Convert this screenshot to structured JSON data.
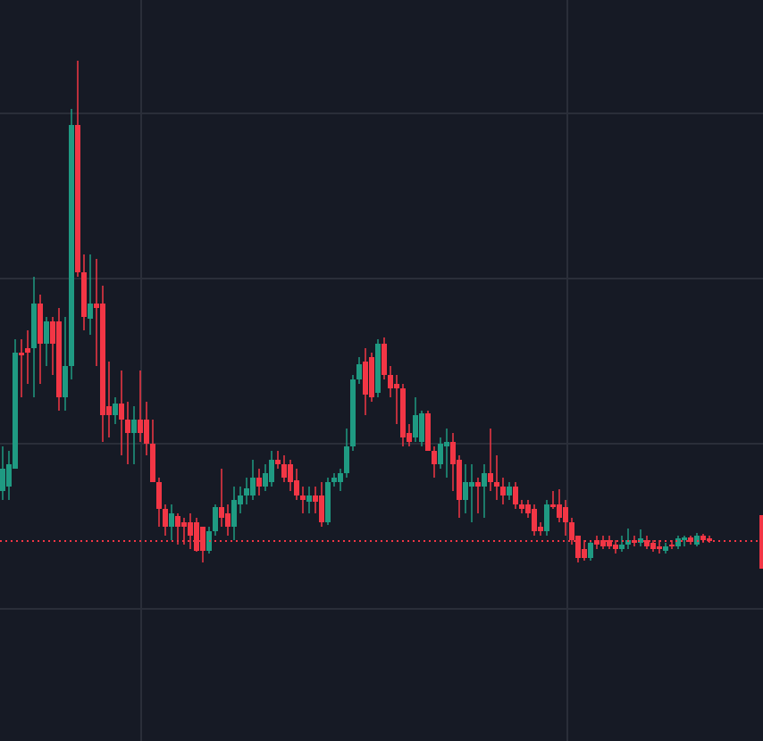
{
  "chart_data": {
    "type": "candlestick",
    "up_color": "#1f9a82",
    "down_color": "#f23645",
    "ylim": [
      0,
      830
    ],
    "last_price": 224,
    "open": [
      280,
      285,
      305,
      435,
      440,
      440,
      490,
      445,
      470,
      470,
      385,
      420,
      690,
      525,
      473,
      490,
      490,
      375,
      365,
      378,
      360,
      345,
      360,
      360,
      333,
      290,
      260,
      240,
      252,
      245,
      245,
      245,
      240,
      213,
      235,
      262,
      255,
      240,
      265,
      275,
      275,
      295,
      285,
      290,
      315,
      310,
      310,
      292,
      275,
      268,
      275,
      275,
      245,
      290,
      290,
      300,
      330,
      405,
      425,
      430,
      390,
      445,
      410,
      400,
      395,
      345,
      340,
      335,
      367,
      325,
      310,
      330,
      335,
      315,
      270,
      285,
      290,
      285,
      300,
      290,
      285,
      275,
      285,
      265,
      265,
      260,
      240,
      235,
      265,
      265,
      262,
      245,
      230,
      215,
      205,
      225,
      225,
      225,
      220,
      215,
      220,
      225,
      222,
      225,
      222,
      218,
      213,
      220,
      218,
      225,
      228,
      220,
      230,
      227
    ],
    "high": [
      330,
      325,
      450,
      450,
      460,
      520,
      500,
      475,
      475,
      485,
      475,
      708,
      762,
      545,
      545,
      540,
      510,
      425,
      385,
      415,
      380,
      375,
      415,
      380,
      360,
      295,
      265,
      265,
      255,
      250,
      255,
      250,
      240,
      240,
      265,
      305,
      265,
      285,
      285,
      295,
      315,
      305,
      310,
      325,
      325,
      320,
      315,
      305,
      285,
      285,
      285,
      290,
      295,
      300,
      305,
      350,
      410,
      430,
      440,
      435,
      450,
      452,
      420,
      410,
      400,
      355,
      385,
      370,
      370,
      330,
      340,
      350,
      345,
      320,
      310,
      310,
      295,
      310,
      350,
      320,
      295,
      290,
      290,
      270,
      270,
      265,
      245,
      270,
      280,
      282,
      270,
      250,
      230,
      225,
      225,
      230,
      230,
      230,
      225,
      230,
      238,
      230,
      237,
      230,
      225,
      225,
      222,
      225,
      230,
      230,
      230,
      233,
      232,
      230
    ],
    "low": [
      270,
      270,
      305,
      385,
      400,
      385,
      400,
      420,
      410,
      370,
      370,
      405,
      520,
      460,
      455,
      420,
      335,
      340,
      355,
      320,
      310,
      310,
      335,
      320,
      290,
      240,
      230,
      225,
      220,
      220,
      215,
      212,
      200,
      210,
      230,
      240,
      230,
      225,
      255,
      265,
      270,
      275,
      280,
      285,
      305,
      290,
      280,
      270,
      255,
      255,
      255,
      240,
      242,
      285,
      280,
      295,
      325,
      400,
      365,
      380,
      385,
      405,
      385,
      355,
      330,
      330,
      335,
      330,
      325,
      295,
      305,
      295,
      280,
      250,
      255,
      245,
      255,
      250,
      280,
      270,
      265,
      270,
      260,
      255,
      250,
      230,
      230,
      230,
      260,
      245,
      230,
      220,
      200,
      202,
      202,
      215,
      215,
      215,
      210,
      212,
      215,
      218,
      218,
      215,
      212,
      210,
      210,
      215,
      215,
      218,
      220,
      218,
      222,
      222
    ],
    "close": [
      305,
      310,
      435,
      432,
      435,
      490,
      445,
      470,
      445,
      385,
      420,
      690,
      525,
      475,
      490,
      485,
      365,
      365,
      378,
      360,
      345,
      360,
      345,
      333,
      290,
      260,
      240,
      255,
      240,
      240,
      230,
      213,
      213,
      235,
      262,
      250,
      240,
      270,
      275,
      283,
      295,
      285,
      300,
      315,
      310,
      295,
      290,
      275,
      270,
      275,
      268,
      245,
      290,
      295,
      300,
      330,
      405,
      422,
      388,
      385,
      445,
      410,
      395,
      395,
      340,
      335,
      365,
      367,
      325,
      310,
      333,
      335,
      310,
      270,
      290,
      290,
      285,
      300,
      290,
      285,
      275,
      285,
      265,
      260,
      255,
      235,
      235,
      265,
      262,
      250,
      245,
      225,
      205,
      205,
      222,
      220,
      218,
      218,
      215,
      220,
      225,
      222,
      227,
      218,
      215,
      215,
      218,
      218,
      227,
      228,
      223,
      230,
      225,
      224
    ]
  }
}
